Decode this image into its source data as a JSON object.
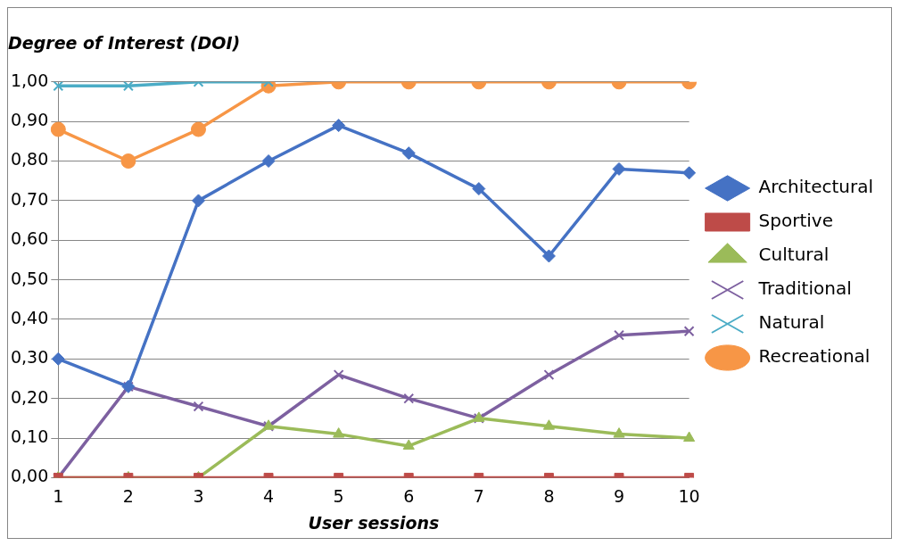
{
  "chart_data": {
    "type": "line",
    "ylabel": "Degree of Interest (DOI)",
    "xlabel": "User sessions",
    "categories": [
      "1",
      "2",
      "3",
      "4",
      "5",
      "6",
      "7",
      "8",
      "9",
      "10"
    ],
    "ylim": [
      0,
      1
    ],
    "yticks": [
      {
        "value": 0,
        "label": "0,00"
      },
      {
        "value": 0.1,
        "label": "0,10"
      },
      {
        "value": 0.2,
        "label": "0,20"
      },
      {
        "value": 0.3,
        "label": "0,30"
      },
      {
        "value": 0.4,
        "label": "0,40"
      },
      {
        "value": 0.5,
        "label": "0,50"
      },
      {
        "value": 0.6,
        "label": "0,60"
      },
      {
        "value": 0.7,
        "label": "0,70"
      },
      {
        "value": 0.8,
        "label": "0,80"
      },
      {
        "value": 0.9,
        "label": "0,90"
      },
      {
        "value": 1,
        "label": "1,00"
      }
    ],
    "grid": "y",
    "legend": "right",
    "line_style": "solid",
    "series": [
      {
        "name": "Architectural",
        "color": "#4572c4",
        "marker": "diamond",
        "values": [
          0.3,
          0.23,
          0.7,
          0.8,
          0.89,
          0.82,
          0.73,
          0.56,
          0.78,
          0.77
        ]
      },
      {
        "name": "Sportive",
        "color": "#be4b48",
        "marker": "square",
        "values": [
          0,
          0,
          0,
          0,
          0,
          0,
          0,
          0,
          0,
          0
        ]
      },
      {
        "name": "Cultural",
        "color": "#9bbb59",
        "marker": "triangle",
        "values": [
          0,
          0,
          0,
          0.13,
          0.11,
          0.08,
          0.15,
          0.13,
          0.11,
          0.1
        ]
      },
      {
        "name": "Traditional",
        "color": "#7d60a0",
        "marker": "cross",
        "values": [
          0,
          0.23,
          0.18,
          0.13,
          0.26,
          0.2,
          0.15,
          0.26,
          0.36,
          0.37
        ]
      },
      {
        "name": "Natural",
        "color": "#4bacc6",
        "marker": "cross",
        "values": [
          0.99,
          0.99,
          1.0,
          1.0,
          null,
          null,
          null,
          null,
          null,
          null
        ]
      },
      {
        "name": "Recreational",
        "color": "#f79646",
        "marker": "circle",
        "values": [
          0.88,
          0.8,
          0.88,
          0.99,
          1.0,
          1.0,
          1.0,
          1.0,
          1.0,
          1.0
        ]
      }
    ]
  }
}
